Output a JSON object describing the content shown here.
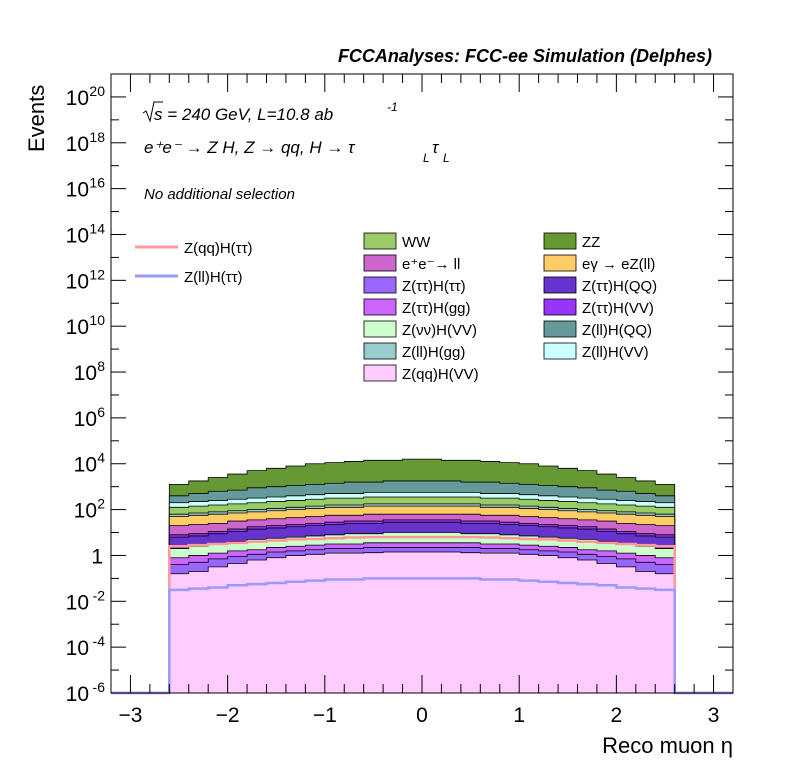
{
  "chart_data": {
    "type": "stacked-histogram",
    "title": "FCCAnalyses: FCC-ee Simulation (Delphes)",
    "xlabel": "Reco muon η",
    "ylabel": "Events",
    "xlim": [
      -3.2,
      3.2
    ],
    "ylim_log10": [
      -6,
      21
    ],
    "yscale": "log",
    "xticks": [
      "−3",
      "−2",
      "−1",
      "0",
      "1",
      "2",
      "3"
    ],
    "yticks": [
      {
        "base": "10",
        "exp": "20"
      },
      {
        "base": "10",
        "exp": "18"
      },
      {
        "base": "10",
        "exp": "16"
      },
      {
        "base": "10",
        "exp": "14"
      },
      {
        "base": "10",
        "exp": "12"
      },
      {
        "base": "10",
        "exp": "10"
      },
      {
        "base": "10",
        "exp": "8"
      },
      {
        "base": "10",
        "exp": "6"
      },
      {
        "base": "10",
        "exp": "4"
      },
      {
        "base": "10",
        "exp": "2"
      },
      {
        "base": "1",
        "exp": ""
      },
      {
        "base": "10",
        "exp": "-2"
      },
      {
        "base": "10",
        "exp": "-4"
      },
      {
        "base": "10",
        "exp": "-6"
      }
    ],
    "annotations": {
      "energy": "s = 240 GeV, L=10.8 ab",
      "energy_exp": "-1",
      "process": "e⁺e⁻ → Z H, Z → qq, H → τ",
      "process_sub": "L",
      "selection": "No additional selection"
    },
    "bins": {
      "low": -2.6,
      "high": 2.6,
      "n": 26
    },
    "stack_cumulative_log10": [
      {
        "name": "Z(qq)H(VV)",
        "color": "#ffccff",
        "top": [
          -0.8,
          -0.7,
          -0.5,
          -0.35,
          -0.2,
          -0.1,
          0,
          0.05,
          0.1,
          0.1,
          0.12,
          0.15,
          0.15,
          0.15,
          0.15,
          0.12,
          0.1,
          0.1,
          0.05,
          0,
          -0.1,
          -0.2,
          -0.35,
          -0.5,
          -0.7,
          -0.8
        ]
      },
      {
        "name": "Z(ττ)H(ττ)",
        "color": "#9966ff",
        "top": [
          -0.4,
          -0.3,
          -0.15,
          -0.05,
          0.05,
          0.15,
          0.2,
          0.25,
          0.3,
          0.3,
          0.35,
          0.35,
          0.35,
          0.35,
          0.35,
          0.35,
          0.3,
          0.3,
          0.25,
          0.2,
          0.15,
          0.05,
          -0.05,
          -0.15,
          -0.3,
          -0.4
        ]
      },
      {
        "name": "Z(ττ)H(gg)",
        "color": "#cc66ff",
        "top": [
          -0.1,
          0,
          0.1,
          0.2,
          0.25,
          0.35,
          0.4,
          0.45,
          0.5,
          0.5,
          0.55,
          0.55,
          0.55,
          0.55,
          0.55,
          0.55,
          0.5,
          0.5,
          0.45,
          0.4,
          0.35,
          0.25,
          0.2,
          0.1,
          0,
          -0.1
        ]
      },
      {
        "name": "Z(νν)H(VV)",
        "color": "#ccffcc",
        "top": [
          0.3,
          0.4,
          0.5,
          0.6,
          0.7,
          0.75,
          0.8,
          0.85,
          0.9,
          0.95,
          0.95,
          1,
          1,
          1,
          1,
          0.95,
          0.95,
          0.9,
          0.85,
          0.8,
          0.75,
          0.7,
          0.6,
          0.5,
          0.4,
          0.3
        ]
      },
      {
        "name": "Z(ττ)H(QQ)",
        "color": "#6633cc",
        "top": [
          0.8,
          0.85,
          0.95,
          1.05,
          1.15,
          1.2,
          1.25,
          1.3,
          1.35,
          1.4,
          1.4,
          1.45,
          1.45,
          1.45,
          1.45,
          1.4,
          1.4,
          1.35,
          1.3,
          1.25,
          1.2,
          1.15,
          1.05,
          0.95,
          0.85,
          0.8
        ]
      },
      {
        "name": "Z(ττ)H(VV)",
        "color": "#9933ff",
        "top": [
          0.9,
          0.95,
          1.05,
          1.15,
          1.25,
          1.3,
          1.35,
          1.4,
          1.45,
          1.5,
          1.5,
          1.55,
          1.55,
          1.55,
          1.55,
          1.5,
          1.5,
          1.45,
          1.4,
          1.35,
          1.3,
          1.25,
          1.15,
          1.05,
          0.95,
          0.9
        ]
      },
      {
        "name": "e⁺e⁻→ ll",
        "color": "#cc66cc",
        "top": [
          1.3,
          1.35,
          1.4,
          1.5,
          1.55,
          1.6,
          1.65,
          1.7,
          1.75,
          1.75,
          1.8,
          1.8,
          1.8,
          1.8,
          1.8,
          1.8,
          1.75,
          1.75,
          1.7,
          1.65,
          1.6,
          1.55,
          1.5,
          1.4,
          1.35,
          1.3
        ]
      },
      {
        "name": "eγ → eZ(ll)",
        "color": "#ffcc66",
        "top": [
          1.7,
          1.75,
          1.8,
          1.85,
          1.9,
          1.95,
          2,
          2.05,
          2.1,
          2.1,
          2.15,
          2.15,
          2.15,
          2.15,
          2.15,
          2.15,
          2.1,
          2.1,
          2.05,
          2,
          1.95,
          1.9,
          1.85,
          1.8,
          1.75,
          1.7
        ]
      },
      {
        "name": "Z(ll)H(gg)",
        "color": "#99cccc",
        "top": [
          1.8,
          1.85,
          1.9,
          1.95,
          2,
          2.05,
          2.1,
          2.15,
          2.2,
          2.2,
          2.25,
          2.25,
          2.25,
          2.25,
          2.25,
          2.25,
          2.2,
          2.2,
          2.15,
          2.1,
          2.05,
          2,
          1.95,
          1.9,
          1.85,
          1.8
        ]
      },
      {
        "name": "WW",
        "color": "#99cc66",
        "top": [
          2.1,
          2.15,
          2.2,
          2.25,
          2.3,
          2.35,
          2.4,
          2.45,
          2.5,
          2.5,
          2.55,
          2.55,
          2.55,
          2.55,
          2.55,
          2.55,
          2.5,
          2.5,
          2.45,
          2.4,
          2.35,
          2.3,
          2.25,
          2.2,
          2.15,
          2.1
        ]
      },
      {
        "name": "Z(ll)H(VV)",
        "color": "#ccffff",
        "top": [
          2.3,
          2.35,
          2.4,
          2.45,
          2.5,
          2.55,
          2.6,
          2.65,
          2.7,
          2.7,
          2.75,
          2.75,
          2.75,
          2.75,
          2.75,
          2.75,
          2.7,
          2.7,
          2.65,
          2.6,
          2.55,
          2.5,
          2.45,
          2.4,
          2.35,
          2.3
        ]
      },
      {
        "name": "Z(ll)H(QQ)",
        "color": "#669999",
        "top": [
          2.6,
          2.7,
          2.8,
          2.85,
          2.95,
          3,
          3.05,
          3.1,
          3.15,
          3.2,
          3.2,
          3.25,
          3.25,
          3.25,
          3.25,
          3.2,
          3.2,
          3.15,
          3.1,
          3.05,
          3,
          2.95,
          2.85,
          2.8,
          2.7,
          2.6
        ]
      },
      {
        "name": "ZZ",
        "color": "#669933",
        "top": [
          3.1,
          3.25,
          3.4,
          3.55,
          3.7,
          3.8,
          3.9,
          4,
          4.05,
          4.1,
          4.15,
          4.15,
          4.2,
          4.2,
          4.15,
          4.15,
          4.1,
          4.05,
          4,
          3.9,
          3.8,
          3.7,
          3.55,
          3.4,
          3.25,
          3.1
        ]
      }
    ],
    "signal_lines_log10": [
      {
        "name": "Z(qq)H(ττ)",
        "color": "#ff9999",
        "values": [
          0.4,
          0.45,
          0.5,
          0.55,
          0.6,
          0.65,
          0.7,
          0.72,
          0.75,
          0.78,
          0.8,
          0.8,
          0.8,
          0.8,
          0.8,
          0.8,
          0.78,
          0.75,
          0.72,
          0.7,
          0.65,
          0.6,
          0.55,
          0.5,
          0.45,
          0.4
        ]
      },
      {
        "name": "Z(ll)H(ττ)",
        "color": "#9999ff",
        "values": [
          -1.5,
          -1.45,
          -1.4,
          -1.3,
          -1.25,
          -1.2,
          -1.15,
          -1.1,
          -1.05,
          -1.05,
          -1,
          -1,
          -1,
          -1,
          -1,
          -1,
          -1.05,
          -1.05,
          -1.1,
          -1.15,
          -1.2,
          -1.25,
          -1.3,
          -1.4,
          -1.45,
          -1.5
        ]
      }
    ],
    "legend_left": [
      {
        "label": "Z(qq)H(ττ)",
        "color": "#ff9999"
      },
      {
        "label": "Z(ll)H(ττ)",
        "color": "#9999ff"
      }
    ],
    "legend_col1": [
      {
        "label": "WW",
        "color": "#99cc66"
      },
      {
        "label": "e⁺e⁻→ ll",
        "color": "#cc66cc"
      },
      {
        "label": "Z(ττ)H(ττ)",
        "color": "#9966ff"
      },
      {
        "label": "Z(ττ)H(gg)",
        "color": "#cc66ff"
      },
      {
        "label": "Z(νν)H(VV)",
        "color": "#ccffcc"
      },
      {
        "label": "Z(ll)H(gg)",
        "color": "#99cccc"
      },
      {
        "label": "Z(qq)H(VV)",
        "color": "#ffccff"
      }
    ],
    "legend_col2": [
      {
        "label": "ZZ",
        "color": "#669933"
      },
      {
        "label": "eγ → eZ(ll)",
        "color": "#ffcc66"
      },
      {
        "label": "Z(ττ)H(QQ)",
        "color": "#6633cc"
      },
      {
        "label": "Z(ττ)H(VV)",
        "color": "#9933ff"
      },
      {
        "label": "Z(ll)H(QQ)",
        "color": "#669999"
      },
      {
        "label": "Z(ll)H(VV)",
        "color": "#ccffff"
      }
    ]
  }
}
